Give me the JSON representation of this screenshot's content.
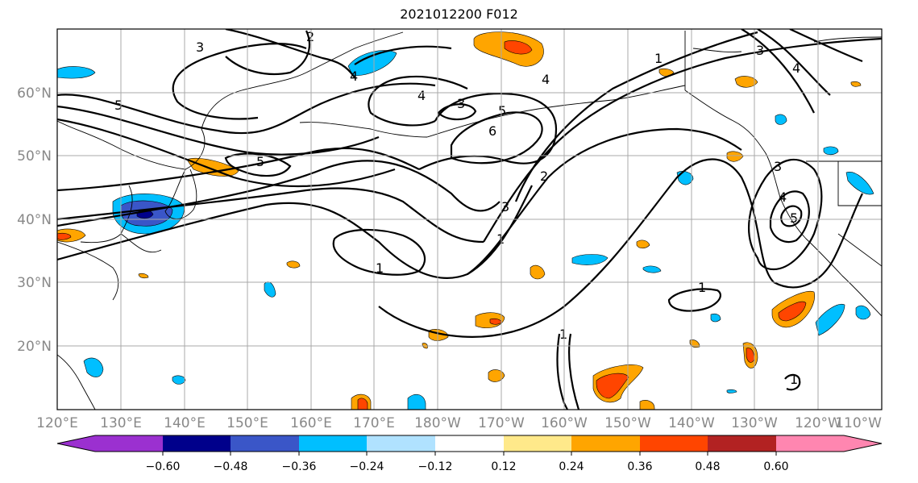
{
  "title": "2021012200 F012",
  "map": {
    "lon_labels": [
      "120°E",
      "130°E",
      "140°E",
      "150°E",
      "160°E",
      "170°E",
      "180°W",
      "170°W",
      "160°W",
      "150°W",
      "140°W",
      "130°W",
      "120°W",
      "110°W"
    ],
    "lat_labels": [
      "20°N",
      "30°N",
      "40°N",
      "50°N",
      "60°N"
    ],
    "contour_labels": [
      "1",
      "2",
      "3",
      "4",
      "5",
      "6"
    ]
  },
  "colorbar": {
    "colors": [
      "#9b30d0",
      "#00008b",
      "#3a56c8",
      "#00bfff",
      "#b0e2ff",
      "#ffffff",
      "#ffe98a",
      "#ffa500",
      "#ff4500",
      "#b22222",
      "#ff86b0"
    ],
    "tick_labels": [
      "−0.60",
      "−0.48",
      "−0.36",
      "−0.24",
      "−0.12",
      "0.12",
      "0.24",
      "0.36",
      "0.48",
      "0.60"
    ]
  }
}
